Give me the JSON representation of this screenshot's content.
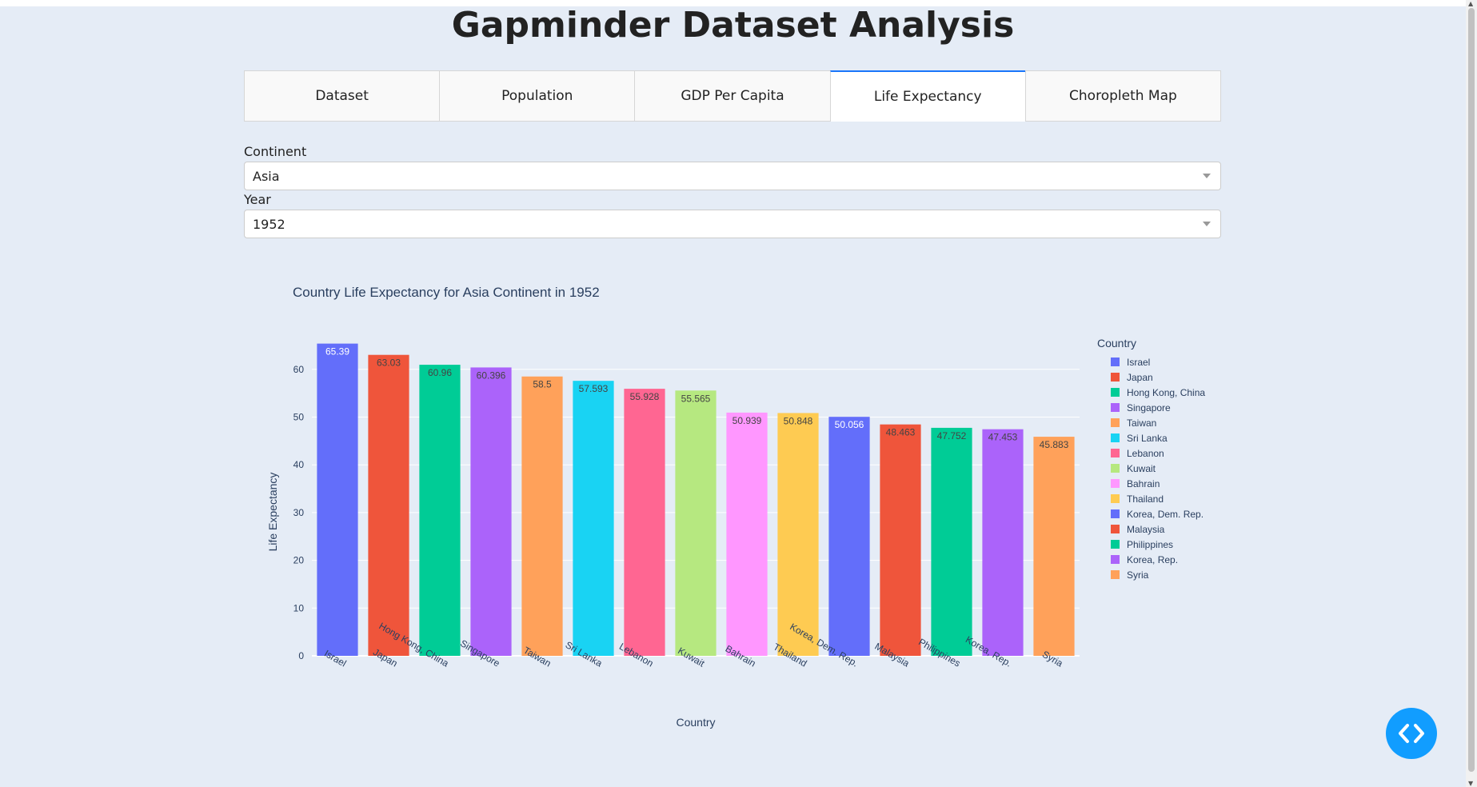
{
  "page": {
    "title": "Gapminder Dataset Analysis"
  },
  "tabs": [
    {
      "label": "Dataset"
    },
    {
      "label": "Population"
    },
    {
      "label": "GDP Per Capita"
    },
    {
      "label": "Life Expectancy",
      "active": true
    },
    {
      "label": "Choropleth Map"
    }
  ],
  "filters": {
    "continent": {
      "label": "Continent",
      "value": "Asia"
    },
    "year": {
      "label": "Year",
      "value": "1952"
    }
  },
  "chart_data": {
    "type": "bar",
    "title": "Country Life Expectancy for Asia Continent in 1952",
    "xlabel": "Country",
    "ylabel": "Life Expectancy",
    "ylim": [
      0,
      67
    ],
    "yticks": [
      0,
      10,
      20,
      30,
      40,
      50,
      60
    ],
    "grid": true,
    "legend": {
      "title": "Country",
      "position": "right"
    },
    "categories": [
      "Israel",
      "Japan",
      "Hong Kong, China",
      "Singapore",
      "Taiwan",
      "Sri Lanka",
      "Lebanon",
      "Kuwait",
      "Bahrain",
      "Thailand",
      "Korea, Dem. Rep.",
      "Malaysia",
      "Philippines",
      "Korea, Rep.",
      "Syria"
    ],
    "values": [
      65.39,
      63.03,
      60.96,
      60.396,
      58.5,
      57.593,
      55.928,
      55.565,
      50.939,
      50.848,
      50.056,
      48.463,
      47.752,
      47.453,
      45.883
    ],
    "value_labels": [
      "65.39",
      "63.03",
      "60.96",
      "60.396",
      "58.5",
      "57.593",
      "55.928",
      "55.565",
      "50.939",
      "50.848",
      "50.056",
      "48.463",
      "47.752",
      "47.453",
      "45.883"
    ],
    "colors": [
      "#636efa",
      "#ef553b",
      "#00cc96",
      "#ab63fa",
      "#ffa15a",
      "#19d3f3",
      "#ff6692",
      "#b6e880",
      "#ff97ff",
      "#fecb52",
      "#636efa",
      "#ef553b",
      "#00cc96",
      "#ab63fa",
      "#ffa15a"
    ],
    "label_colors": [
      "#ffffff",
      "#444444",
      "#444444",
      "#444444",
      "#444444",
      "#444444",
      "#444444",
      "#444444",
      "#444444",
      "#444444",
      "#ffffff",
      "#444444",
      "#444444",
      "#444444",
      "#444444"
    ]
  },
  "icons": {
    "fab": "code-brackets-icon",
    "dropdown": "chevron-down-icon"
  }
}
